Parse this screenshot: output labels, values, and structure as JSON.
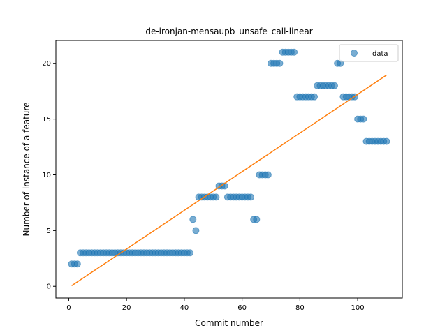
{
  "chart_data": {
    "type": "scatter",
    "title": "de-ironjan-mensaupb_unsafe_call-linear",
    "xlabel": "Commit number",
    "ylabel": "Number of instance of a feature",
    "xlim": [
      -4.45,
      115.45
    ],
    "ylim": [
      -1.05,
      22.05
    ],
    "xticks": [
      0,
      20,
      40,
      60,
      80,
      100
    ],
    "yticks": [
      0,
      5,
      10,
      15,
      20
    ],
    "grid": false,
    "legend": {
      "position": "top-right",
      "entries": [
        "data"
      ]
    },
    "series": [
      {
        "name": "data",
        "kind": "scatter",
        "color": "#1f77b4",
        "x": [
          1,
          2,
          3,
          4,
          5,
          6,
          7,
          8,
          9,
          10,
          11,
          12,
          13,
          14,
          15,
          16,
          17,
          18,
          19,
          20,
          21,
          22,
          23,
          24,
          25,
          26,
          27,
          28,
          29,
          30,
          31,
          32,
          33,
          34,
          35,
          36,
          37,
          38,
          39,
          40,
          41,
          42,
          43,
          44,
          45,
          46,
          47,
          48,
          49,
          50,
          51,
          52,
          53,
          54,
          55,
          56,
          57,
          58,
          59,
          60,
          61,
          62,
          63,
          64,
          65,
          66,
          67,
          68,
          69,
          70,
          71,
          72,
          73,
          74,
          75,
          76,
          77,
          78,
          79,
          80,
          81,
          82,
          83,
          84,
          85,
          86,
          87,
          88,
          89,
          90,
          91,
          92,
          93,
          94,
          95,
          96,
          97,
          98,
          99,
          100,
          101,
          102,
          103,
          104,
          105,
          106,
          107,
          108,
          109,
          110
        ],
        "y": [
          2,
          2,
          2,
          3,
          3,
          3,
          3,
          3,
          3,
          3,
          3,
          3,
          3,
          3,
          3,
          3,
          3,
          3,
          3,
          3,
          3,
          3,
          3,
          3,
          3,
          3,
          3,
          3,
          3,
          3,
          3,
          3,
          3,
          3,
          3,
          3,
          3,
          3,
          3,
          3,
          3,
          3,
          6,
          5,
          8,
          8,
          8,
          8,
          8,
          8,
          8,
          9,
          9,
          9,
          8,
          8,
          8,
          8,
          8,
          8,
          8,
          8,
          8,
          6,
          6,
          10,
          10,
          10,
          10,
          20,
          20,
          20,
          20,
          21,
          21,
          21,
          21,
          21,
          17,
          17,
          17,
          17,
          17,
          17,
          17,
          18,
          18,
          18,
          18,
          18,
          18,
          18,
          20,
          20,
          17,
          17,
          17,
          17,
          17,
          15,
          15,
          15,
          13,
          13,
          13,
          13,
          13,
          13,
          13,
          13
        ]
      },
      {
        "name": "",
        "kind": "line",
        "color": "#ff7f0e",
        "x": [
          1,
          110
        ],
        "y": [
          0.05,
          18.95
        ]
      }
    ]
  }
}
